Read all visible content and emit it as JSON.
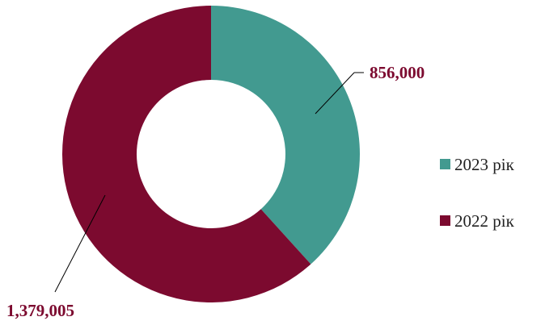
{
  "chart_data": {
    "type": "pie",
    "variant": "donut",
    "title": "",
    "series": [
      {
        "name": "2023 рік",
        "value": 856000,
        "label": "856,000",
        "color": "#429a90"
      },
      {
        "name": "2022 рік",
        "value": 1379005,
        "label": "1,379,005",
        "color": "#7c0a2f"
      }
    ],
    "legend": {
      "position": "right",
      "items": [
        "2023 рік",
        "2022 рік"
      ]
    },
    "label_color": "#7c0a2f",
    "start_angle": "top, clockwise"
  }
}
